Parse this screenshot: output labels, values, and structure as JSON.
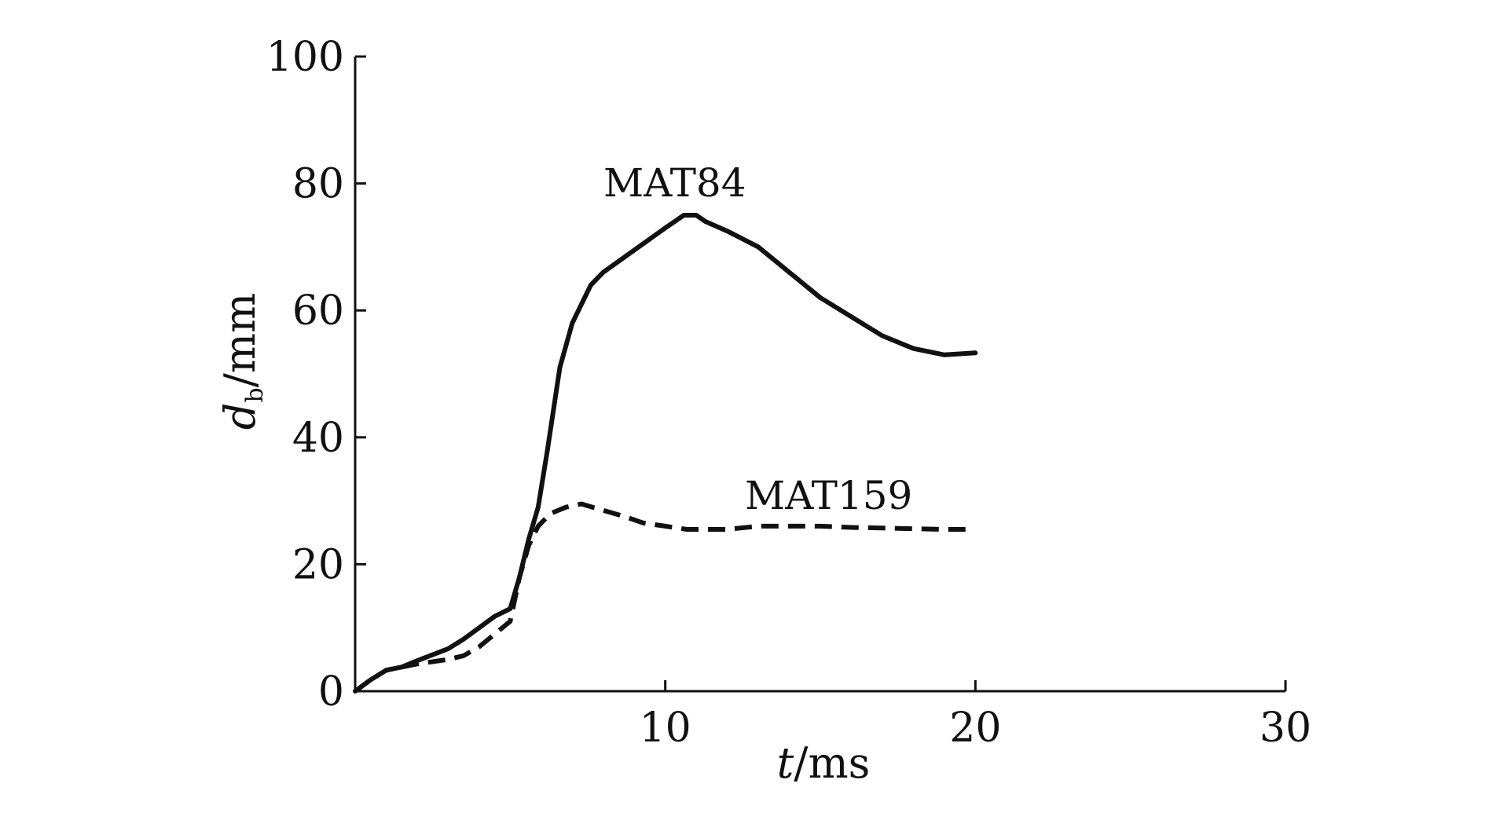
{
  "chart_data": {
    "type": "line",
    "xlabel": {
      "var": "t",
      "unit": "/ms"
    },
    "ylabel": {
      "var": "d",
      "sub": "b",
      "unit": "/mm"
    },
    "xlim": [
      0,
      30
    ],
    "ylim": [
      0,
      100
    ],
    "xticks": [
      10,
      20,
      30
    ],
    "yticks": [
      0,
      20,
      40,
      60,
      80,
      100
    ],
    "grid": false,
    "series": [
      {
        "name": "MAT84",
        "style": "solid",
        "x": [
          0,
          0.5,
          1,
          1.5,
          2,
          3,
          3.5,
          4,
          4.5,
          5,
          5.3,
          5.6,
          5.9,
          6.2,
          6.6,
          7,
          7.6,
          8,
          9,
          10,
          10.6,
          11,
          11.3,
          12,
          13,
          14,
          15,
          16,
          17,
          18,
          19,
          20
        ],
        "y": [
          0,
          1.8,
          3.3,
          3.8,
          4.8,
          6.7,
          8.2,
          10,
          11.8,
          13,
          18,
          24,
          29,
          38,
          51,
          58,
          64,
          66,
          69.5,
          73,
          75,
          75,
          74,
          72.5,
          70,
          66,
          62,
          59,
          56,
          54,
          53,
          53.3
        ]
      },
      {
        "name": "MAT159",
        "style": "dashed",
        "x": [
          0,
          0.5,
          1,
          1.5,
          2,
          3,
          3.5,
          4,
          4.5,
          5,
          5.3,
          5.6,
          5.9,
          6.3,
          6.8,
          7.3,
          8,
          8.7,
          9.3,
          10,
          10.7,
          11.3,
          12,
          13,
          14,
          15,
          16,
          17,
          18,
          19,
          19.8
        ],
        "y": [
          0,
          1.8,
          3.3,
          3.8,
          4.3,
          5,
          5.6,
          7,
          9,
          11,
          18,
          23,
          26,
          28,
          29,
          29.5,
          28.5,
          27.5,
          26.5,
          26,
          25.5,
          25.5,
          25.5,
          26,
          26,
          26,
          25.8,
          25.7,
          25.6,
          25.5,
          25.5
        ]
      }
    ]
  }
}
